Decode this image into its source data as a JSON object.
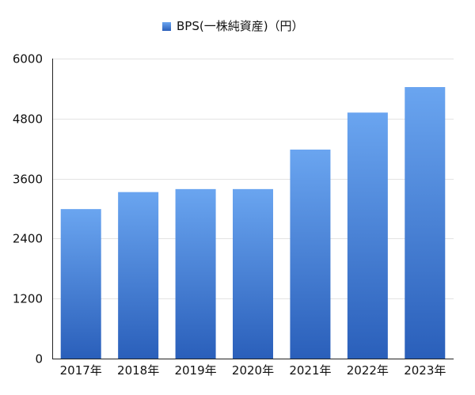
{
  "chart_data": {
    "type": "bar",
    "title": "",
    "xlabel": "",
    "ylabel": "",
    "legend": {
      "position": "top",
      "entries": [
        "BPS(一株純資産)（円）"
      ]
    },
    "categories": [
      "2017年",
      "2018年",
      "2019年",
      "2020年",
      "2021年",
      "2022年",
      "2023年"
    ],
    "series": [
      {
        "name": "BPS(一株純資産)（円）",
        "values": [
          2990,
          3330,
          3390,
          3390,
          4180,
          4920,
          5430
        ]
      }
    ],
    "ylim": [
      0,
      6000
    ],
    "yticks": [
      0,
      1200,
      2400,
      3600,
      4800,
      6000
    ],
    "grid": true,
    "colors": {
      "bar_top": "#6aa5f0",
      "bar_bottom": "#2a5fba",
      "grid": "#e3e3e3",
      "axis": "#222222"
    }
  }
}
